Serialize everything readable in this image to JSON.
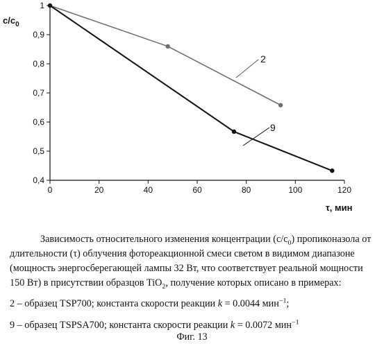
{
  "chart_data": {
    "type": "line",
    "x_label": "τ, мин",
    "y_label": "c/c",
    "y_label_sub": "0",
    "x_range": [
      0,
      120
    ],
    "y_range": [
      0.4,
      1.0
    ],
    "x_ticks": [
      0,
      20,
      40,
      60,
      80,
      100,
      120
    ],
    "x_tick_labels": [
      "0",
      "20",
      "40",
      "60",
      "80",
      "100",
      "120"
    ],
    "y_ticks": [
      0.4,
      0.5,
      0.6,
      0.7,
      0.8,
      0.9,
      1.0
    ],
    "y_tick_labels": [
      "0,4",
      "0,5",
      "0,6",
      "0,7",
      "0,8",
      "0,9",
      "1"
    ],
    "grid": false,
    "legend": "inline labels",
    "series": [
      {
        "name": "2",
        "color": "#6e6e6e",
        "points": [
          [
            0,
            1.0
          ],
          [
            48,
            0.86
          ],
          [
            94,
            0.658
          ]
        ]
      },
      {
        "name": "9",
        "color": "#111111",
        "points": [
          [
            0,
            1.0
          ],
          [
            75,
            0.567
          ],
          [
            115,
            0.433
          ]
        ]
      }
    ]
  },
  "caption": {
    "main_part1": "Зависимость относительного изменения концентрации (c/c",
    "main_sub1": "0",
    "main_part2": ") пропиконазола от длительности (τ) облучения фотореакционной смеси светом в видимом диапазоне (мощность энергосберегающей лампы 32 Вт, что соответствует реальной мощности 150 Вт) в присутствии образцов TiO",
    "main_sub2": "2",
    "main_part3": ", получение которых описано в примерах:",
    "item1_text": "2 – образец TSP700;  константа скорости реакции ",
    "item1_k": "k",
    "item1_value": " = 0.0044 мин",
    "item1_exp": "−1",
    "item1_end": ";",
    "item2_text": "9 – образец TSPSA700; константа скорости реакции ",
    "item2_k": "k",
    "item2_value": " = 0.0072 мин",
    "item2_exp": "−1"
  },
  "figure_label": "Фиг. 13"
}
